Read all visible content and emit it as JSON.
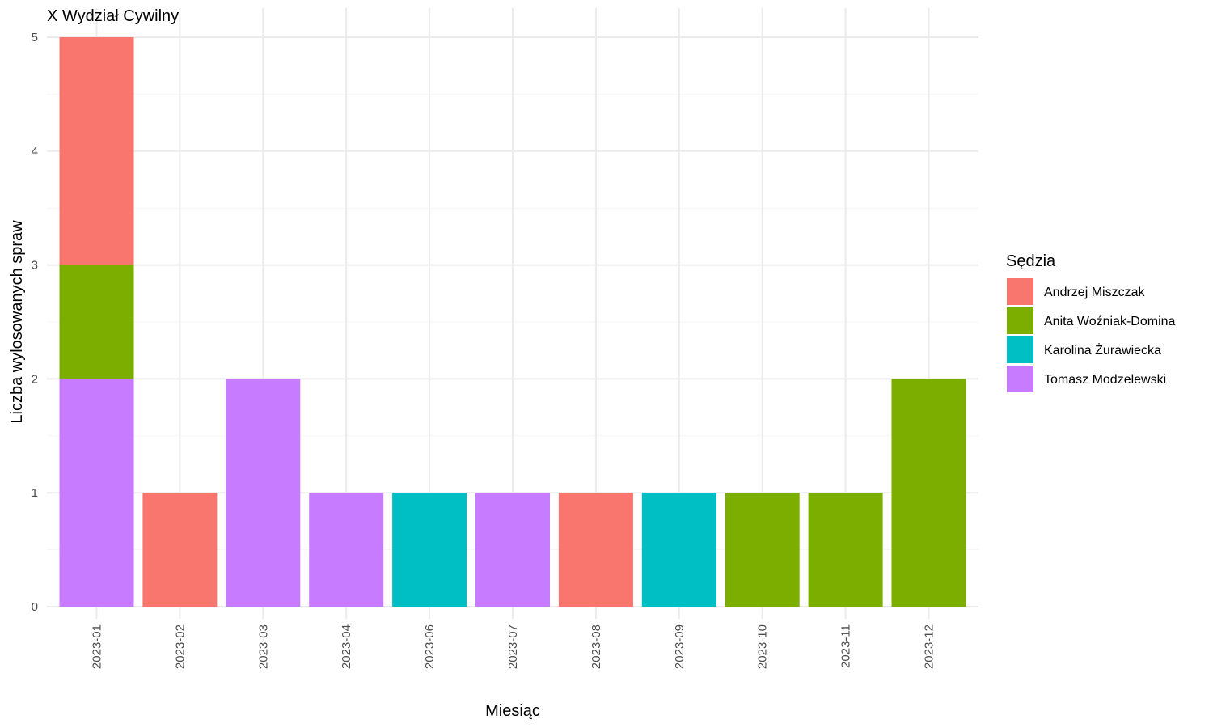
{
  "chart_data": {
    "type": "bar",
    "stacked": true,
    "title": "X Wydział Cywilny",
    "xlabel": "Miesiąc",
    "ylabel": "Liczba wylosowanych spraw",
    "ylim": [
      0,
      5
    ],
    "yticks": [
      0,
      1,
      2,
      3,
      4,
      5
    ],
    "grid": true,
    "legend_position": "right",
    "legend_title": "Sędzia",
    "categories": [
      "2023-01",
      "2023-02",
      "2023-03",
      "2023-04",
      "2023-06",
      "2023-07",
      "2023-08",
      "2023-09",
      "2023-10",
      "2023-11",
      "2023-12"
    ],
    "series": [
      {
        "name": "Andrzej Miszczak",
        "color": "#F8766D",
        "values": [
          2,
          1,
          0,
          0,
          0,
          0,
          1,
          0,
          0,
          0,
          0
        ]
      },
      {
        "name": "Anita Woźniak-Domina",
        "color": "#7CAE00",
        "values": [
          1,
          0,
          0,
          0,
          0,
          0,
          0,
          0,
          1,
          1,
          2
        ]
      },
      {
        "name": "Karolina Żurawiecka",
        "color": "#00BFC4",
        "values": [
          0,
          0,
          0,
          0,
          1,
          0,
          0,
          1,
          0,
          0,
          0
        ]
      },
      {
        "name": "Tomasz Modzelewski",
        "color": "#C77CFF",
        "values": [
          2,
          0,
          2,
          1,
          0,
          1,
          0,
          0,
          0,
          0,
          0
        ]
      }
    ]
  }
}
